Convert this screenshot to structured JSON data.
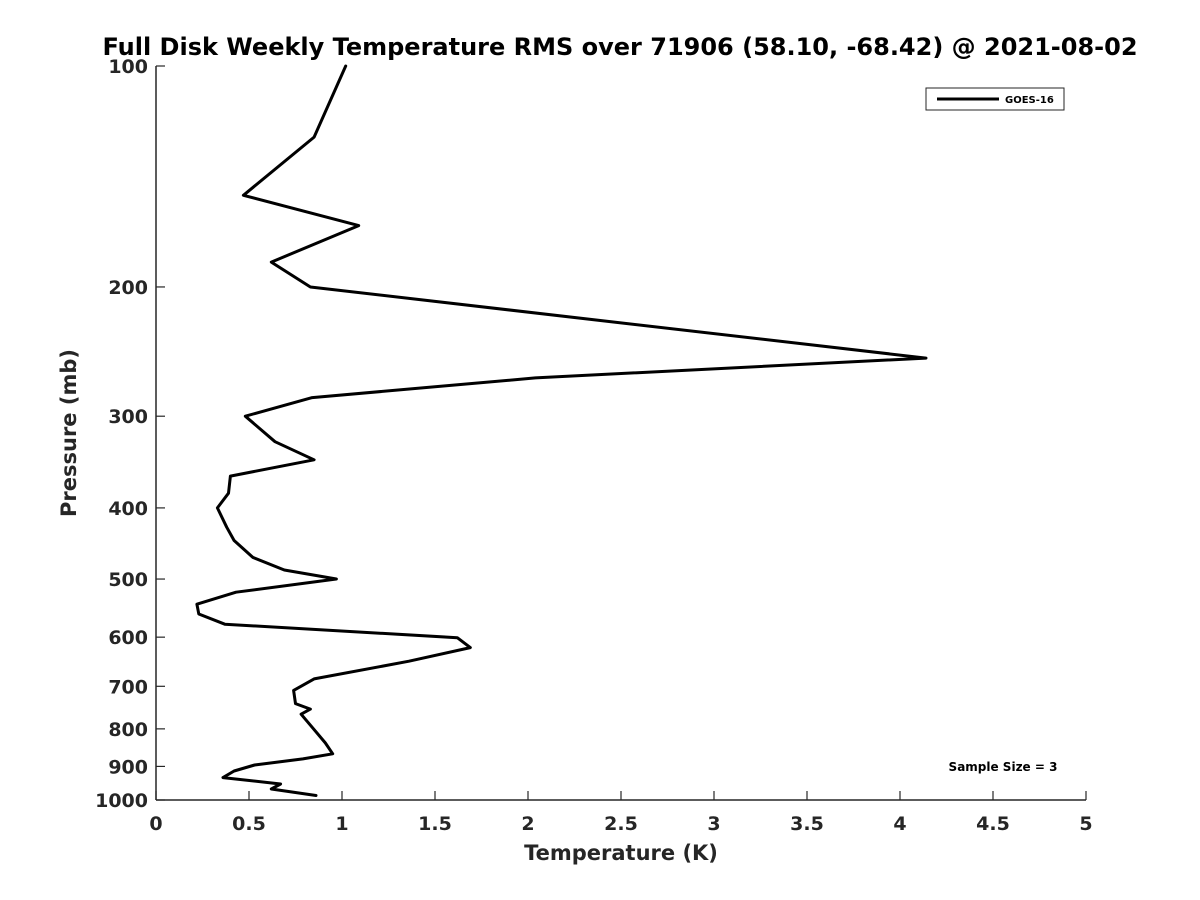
{
  "chart_data": {
    "type": "line",
    "title": "Full Disk Weekly Temperature RMS over 71906 (58.10, -68.42) @ 2021-08-02",
    "xlabel": "Temperature (K)",
    "ylabel": "Pressure (mb)",
    "xlim": [
      0,
      5
    ],
    "ylim": [
      1000,
      100
    ],
    "y_scale": "log",
    "y_reversed": true,
    "grid": false,
    "legend_position": "top-right",
    "x_ticks": [
      0,
      0.5,
      1,
      1.5,
      2,
      2.5,
      3,
      3.5,
      4,
      4.5,
      5
    ],
    "x_tick_labels": [
      "0",
      "0.5",
      "1",
      "1.5",
      "2",
      "2.5",
      "3",
      "3.5",
      "4",
      "4.5",
      "5"
    ],
    "y_ticks": [
      100,
      200,
      300,
      400,
      500,
      600,
      700,
      800,
      900,
      1000
    ],
    "y_tick_labels": [
      "100",
      "200",
      "300",
      "400",
      "500",
      "600",
      "700",
      "800",
      "900",
      "1000"
    ],
    "annotation": "Sample Size = 3",
    "series": [
      {
        "name": "GOES-16",
        "color": "#000000",
        "points": [
          [
            1.02,
            100
          ],
          [
            0.85,
            125
          ],
          [
            0.47,
            150
          ],
          [
            1.09,
            165
          ],
          [
            0.62,
            185
          ],
          [
            0.83,
            200
          ],
          [
            4.14,
            250
          ],
          [
            2.04,
            266
          ],
          [
            0.84,
            283
          ],
          [
            0.48,
            300
          ],
          [
            0.64,
            325
          ],
          [
            0.85,
            344
          ],
          [
            0.4,
            362
          ],
          [
            0.39,
            382
          ],
          [
            0.33,
            400
          ],
          [
            0.38,
            425
          ],
          [
            0.42,
            443
          ],
          [
            0.52,
            467
          ],
          [
            0.69,
            486
          ],
          [
            0.97,
            500
          ],
          [
            0.43,
            521
          ],
          [
            0.22,
            541
          ],
          [
            0.23,
            558
          ],
          [
            0.37,
            576
          ],
          [
            1.62,
            601
          ],
          [
            1.69,
            620
          ],
          [
            1.36,
            647
          ],
          [
            0.85,
            684
          ],
          [
            0.74,
            709
          ],
          [
            0.75,
            739
          ],
          [
            0.83,
            752
          ],
          [
            0.78,
            764
          ],
          [
            0.84,
            796
          ],
          [
            0.91,
            836
          ],
          [
            0.95,
            865
          ],
          [
            0.79,
            879
          ],
          [
            0.53,
            896
          ],
          [
            0.42,
            913
          ],
          [
            0.36,
            932
          ],
          [
            0.67,
            951
          ],
          [
            0.62,
            966
          ],
          [
            0.86,
            986
          ]
        ]
      }
    ]
  }
}
